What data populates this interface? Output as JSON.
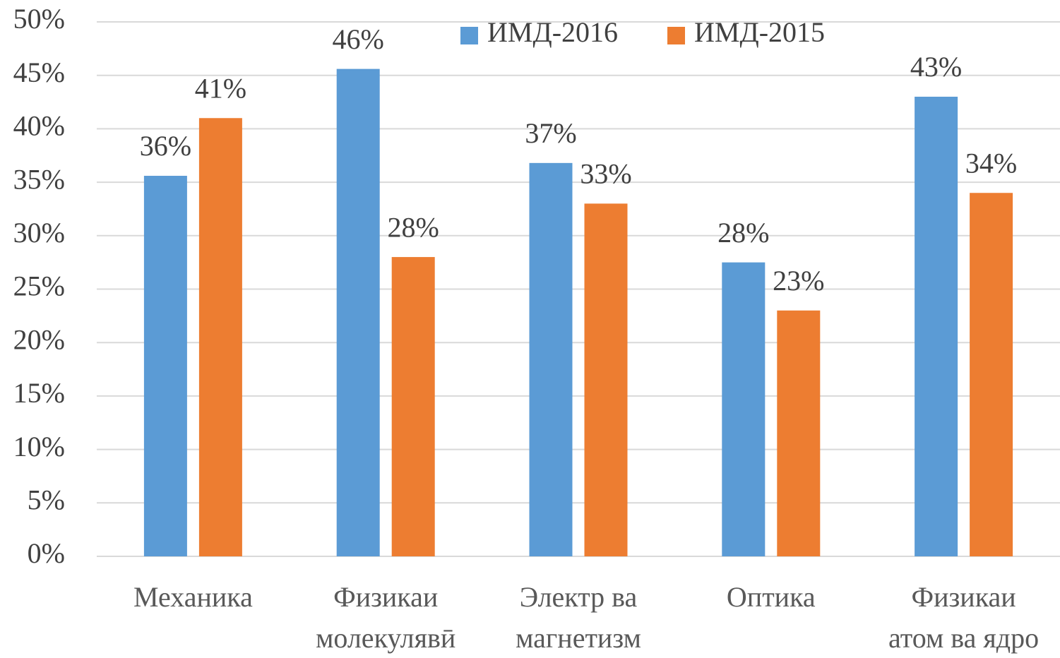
{
  "chart_data": {
    "type": "bar",
    "categories": [
      [
        "Механика"
      ],
      [
        "Физикаи",
        "молекулявӣ"
      ],
      [
        "Электр ва",
        "магнетизм"
      ],
      [
        "Оптика"
      ],
      [
        "Физикаи",
        "атом ва ядро"
      ]
    ],
    "series": [
      {
        "name": "ИМД-2016",
        "color": "#5b9bd5",
        "values": [
          35.6,
          45.6,
          36.8,
          27.5,
          43
        ],
        "value_labels": [
          "36%",
          "46%",
          "37%",
          "28%",
          "43%"
        ]
      },
      {
        "name": "ИМД-2015",
        "color": "#ed7d31",
        "values": [
          41,
          28,
          33,
          23,
          34
        ],
        "value_labels": [
          "41%",
          "28%",
          "33%",
          "23%",
          "34%"
        ]
      }
    ],
    "ylim": [
      0,
      50
    ],
    "yticks": [
      {
        "value": 0,
        "label": "0%"
      },
      {
        "value": 5,
        "label": "5%"
      },
      {
        "value": 10,
        "label": "10%"
      },
      {
        "value": 15,
        "label": "15%"
      },
      {
        "value": 20,
        "label": "20%"
      },
      {
        "value": 25,
        "label": "25%"
      },
      {
        "value": 30,
        "label": "30%"
      },
      {
        "value": 35,
        "label": "35%"
      },
      {
        "value": 40,
        "label": "40%"
      },
      {
        "value": 45,
        "label": "45%"
      },
      {
        "value": 50,
        "label": "50%"
      }
    ],
    "grid": true,
    "legend": "top"
  }
}
